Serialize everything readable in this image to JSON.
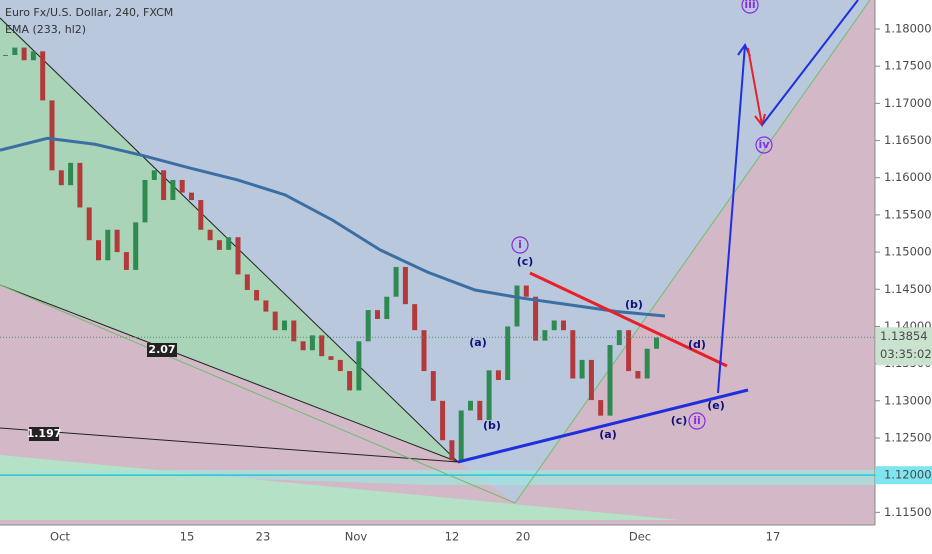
{
  "chart_data": {
    "type": "candlestick",
    "title": "Euro Fx/U.S. Dollar, 240, FXCM",
    "indicator": {
      "name": "EMA (233, hl2)",
      "color": "#3b6fa3",
      "values": [
        1.1637,
        1.1653,
        1.1645,
        1.163,
        1.1613,
        1.1597,
        1.1577,
        1.1543,
        1.1503,
        1.1473,
        1.1449,
        1.1438,
        1.1429,
        1.142,
        1.1414
      ]
    },
    "colors": {
      "up": "#2f8a52",
      "down": "#b23a3a"
    },
    "values": [
      1.1765,
      1.1775,
      1.1758,
      1.177,
      1.1704,
      1.161,
      1.159,
      1.162,
      1.156,
      1.1516,
      1.1489,
      1.153,
      1.15,
      1.1476,
      1.154,
      1.1597,
      1.161,
      1.157,
      1.1597,
      1.158,
      1.157,
      1.153,
      1.1516,
      1.1503,
      1.152,
      1.147,
      1.1449,
      1.1435,
      1.142,
      1.1395,
      1.1408,
      1.138,
      1.1368,
      1.1388,
      1.136,
      1.1355,
      1.134,
      1.1314,
      1.138,
      1.1422,
      1.141,
      1.144,
      1.148,
      1.143,
      1.1395,
      1.134,
      1.13,
      1.1247,
      1.122,
      1.1287,
      1.13,
      1.1274,
      1.1341,
      1.1328,
      1.14,
      1.1455,
      1.144,
      1.1381,
      1.1395,
      1.1408,
      1.1395,
      1.133,
      1.1355,
      1.1301,
      1.128,
      1.1375,
      1.1395,
      1.134,
      1.133,
      1.137,
      1.1385
    ],
    "ylim": [
      1.1133,
      1.1839
    ],
    "yticks": [
      {
        "value": 1.115,
        "label": "1.11500"
      },
      {
        "value": 1.12,
        "label": "1.12000"
      },
      {
        "value": 1.125,
        "label": "1.12500"
      },
      {
        "value": 1.13,
        "label": "1.13000"
      },
      {
        "value": 1.135,
        "label": "1.13500"
      },
      {
        "value": 1.14,
        "label": "1.14000"
      },
      {
        "value": 1.145,
        "label": "1.14500"
      },
      {
        "value": 1.15,
        "label": "1.15000"
      },
      {
        "value": 1.155,
        "label": "1.15500"
      },
      {
        "value": 1.16,
        "label": "1.16000"
      },
      {
        "value": 1.165,
        "label": "1.16500"
      },
      {
        "value": 1.17,
        "label": "1.17000"
      },
      {
        "value": 1.175,
        "label": "1.17500"
      },
      {
        "value": 1.18,
        "label": "1.18000"
      }
    ],
    "xticks": [
      "Oct",
      "15",
      "23",
      "Nov",
      "12",
      "20",
      "Dec",
      "17"
    ],
    "last_price": {
      "value": 1.13854,
      "label": "1.13854"
    },
    "countdown": "03:35:02",
    "level": {
      "value": 1.12,
      "label": "1.12000"
    },
    "annotations": [
      "i",
      "(c)",
      "(a)",
      "(b)",
      "(b)",
      "(d)",
      "(a)",
      "(e)",
      "(c)",
      "ii",
      "iii",
      "iv",
      "2.07",
      "1.197"
    ]
  }
}
